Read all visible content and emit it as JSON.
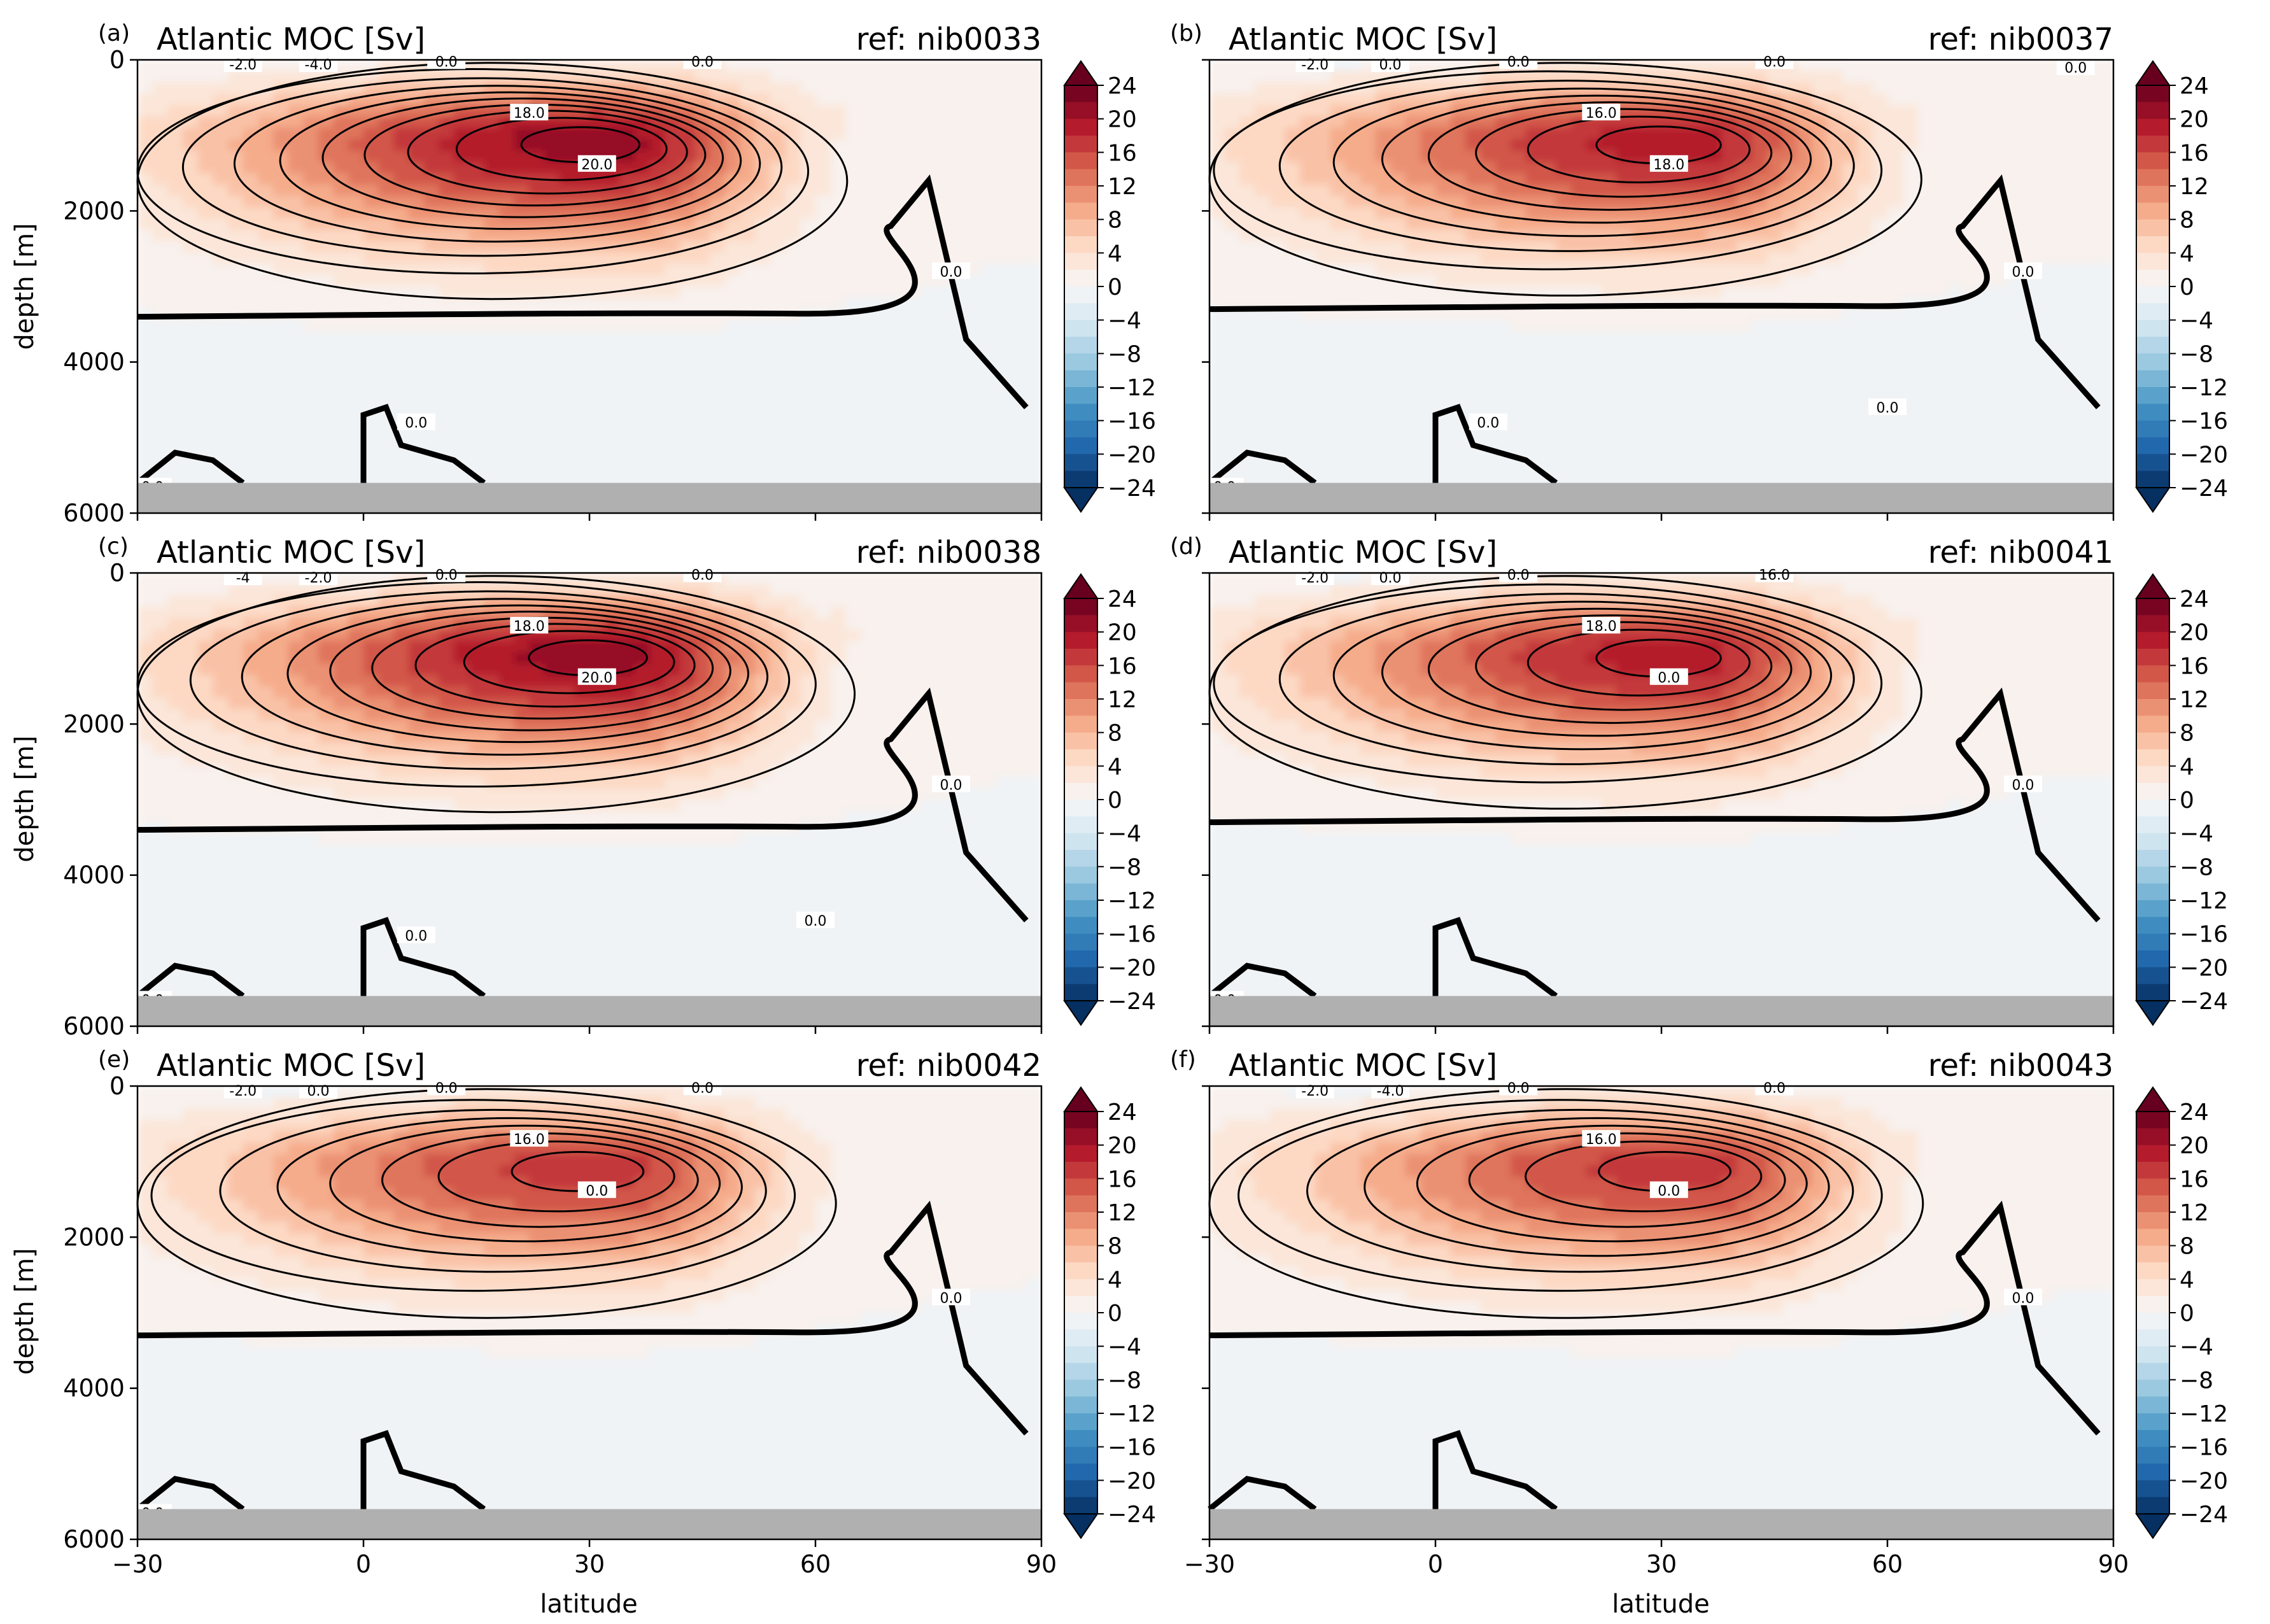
{
  "figure": {
    "xlabel": "latitude",
    "ylabel": "depth [m]"
  },
  "colorbar": {
    "ticks": [
      "24",
      "20",
      "16",
      "12",
      "8",
      "4",
      "0",
      "−4",
      "−8",
      "−12",
      "−16",
      "−20",
      "−24"
    ],
    "range": [
      -24,
      24
    ],
    "step": 2,
    "extend": "both",
    "colormap": "RdBu_r",
    "color_high": "#67001f",
    "color_zero": "#f7f7f7",
    "color_low": "#053061"
  },
  "land_color": "#b0b0b0",
  "chart_data": [
    {
      "type": "contour",
      "panel": "(a)",
      "title": "Atlantic MOC [Sv]",
      "ref": "ref: nib0033",
      "xlim": [
        -30,
        90
      ],
      "ylim": [
        6000,
        0
      ],
      "xticks": [
        "−30",
        "0",
        "30",
        "60",
        "90"
      ],
      "yticks": [
        "0",
        "2000",
        "4000",
        "6000"
      ],
      "max_overturning": 21,
      "max_lat": 32,
      "max_depth": 1050,
      "zero_depth": 3400,
      "contour_labels": [
        "-2.0",
        "-4.0",
        "0.0",
        "0.0",
        "18.0",
        "20.0",
        "0.0",
        "0.0",
        "0.0"
      ]
    },
    {
      "type": "contour",
      "panel": "(b)",
      "title": "Atlantic MOC [Sv]",
      "ref": "ref: nib0037",
      "xlim": [
        -30,
        90
      ],
      "ylim": [
        6000,
        0
      ],
      "xticks": [
        "−30",
        "0",
        "30",
        "60",
        "90"
      ],
      "yticks": [
        "0",
        "2000",
        "4000",
        "6000"
      ],
      "max_overturning": 19,
      "max_lat": 33,
      "max_depth": 1050,
      "zero_depth": 3300,
      "contour_labels": [
        "-2.0",
        "0.0",
        "0.0",
        "0.0",
        "16.0",
        "18.0",
        "0.0",
        "0.0",
        "0.0",
        "0.0",
        "0.0"
      ]
    },
    {
      "type": "contour",
      "panel": "(c)",
      "title": "Atlantic MOC [Sv]",
      "ref": "ref: nib0038",
      "xlim": [
        -30,
        90
      ],
      "ylim": [
        6000,
        0
      ],
      "xticks": [
        "−30",
        "0",
        "30",
        "60",
        "90"
      ],
      "yticks": [
        "0",
        "2000",
        "4000",
        "6000"
      ],
      "max_overturning": 21,
      "max_lat": 33,
      "max_depth": 1050,
      "zero_depth": 3400,
      "contour_labels": [
        "-4",
        "-2.0",
        "0.0",
        "0.0",
        "18.0",
        "20.0",
        "0.0",
        "0.0",
        "0.0",
        "0.0"
      ]
    },
    {
      "type": "contour",
      "panel": "(d)",
      "title": "Atlantic MOC [Sv]",
      "ref": "ref: nib0041",
      "xlim": [
        -30,
        90
      ],
      "ylim": [
        6000,
        0
      ],
      "xticks": [
        "−30",
        "0",
        "30",
        "60",
        "90"
      ],
      "yticks": [
        "0",
        "2000",
        "4000",
        "6000"
      ],
      "max_overturning": 19,
      "max_lat": 33,
      "max_depth": 1050,
      "zero_depth": 3300,
      "contour_labels": [
        "-2.0",
        "0.0",
        "0.0",
        "16.0",
        "18.0",
        "0.0",
        "0.0",
        "0.0"
      ]
    },
    {
      "type": "contour",
      "panel": "(e)",
      "title": "Atlantic MOC [Sv]",
      "ref": "ref: nib0042",
      "xlim": [
        -30,
        90
      ],
      "ylim": [
        6000,
        0
      ],
      "xticks": [
        "−30",
        "0",
        "30",
        "60",
        "90"
      ],
      "yticks": [
        "0",
        "2000",
        "4000",
        "6000"
      ],
      "max_overturning": 17,
      "max_lat": 32,
      "max_depth": 1050,
      "zero_depth": 3300,
      "contour_labels": [
        "-2.0",
        "0.0",
        "0.0",
        "0.0",
        "16.0",
        "0.0",
        "0.0",
        "0.0"
      ]
    },
    {
      "type": "contour",
      "panel": "(f)",
      "title": "Atlantic MOC [Sv]",
      "ref": "ref: nib0043",
      "xlim": [
        -30,
        90
      ],
      "ylim": [
        6000,
        0
      ],
      "xticks": [
        "−30",
        "0",
        "30",
        "60",
        "90"
      ],
      "yticks": [
        "0",
        "2000",
        "4000",
        "6000"
      ],
      "max_overturning": 17,
      "max_lat": 34,
      "max_depth": 1050,
      "zero_depth": 3300,
      "contour_labels": [
        "-2.0",
        "-4.0",
        "0.0",
        "0.0",
        "16.0",
        "0.0",
        "0.0"
      ]
    }
  ]
}
